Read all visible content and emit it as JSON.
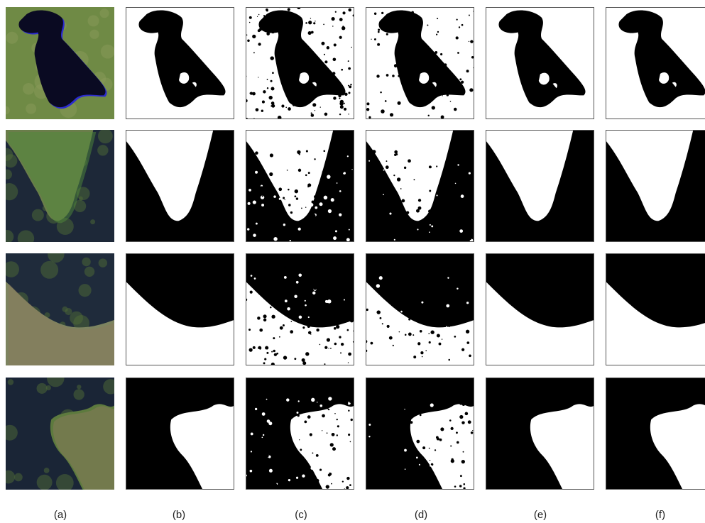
{
  "panels": {
    "labels": [
      "(a)",
      "(b)",
      "(c)",
      "(d)",
      "(e)",
      "(f)"
    ]
  }
}
